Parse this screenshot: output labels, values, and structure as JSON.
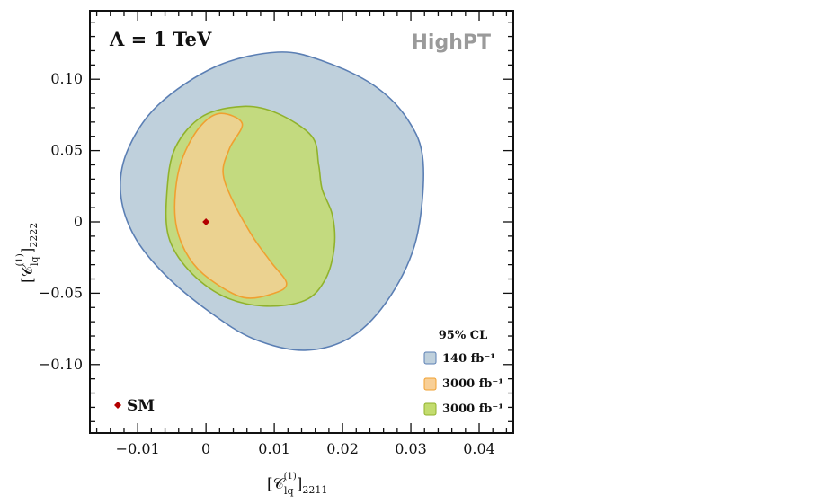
{
  "chart_data": {
    "type": "contour",
    "title": "Λ = 1 TeV",
    "brand": "HighPT",
    "xlabel": {
      "base": "[𝒞",
      "sup": "(1)",
      "sub": "lq",
      "tail": "]",
      "tail_sub": "2211"
    },
    "ylabel": {
      "base": "[𝒞",
      "sup": "(1)",
      "sub": "lq",
      "tail": "]",
      "tail_sub": "2222"
    },
    "xlim": [
      -0.017,
      0.045
    ],
    "ylim": [
      -0.148,
      0.148
    ],
    "x_ticks": [
      -0.01,
      0,
      0.01,
      0.02,
      0.03,
      0.04
    ],
    "x_tick_labels": [
      "−0.01",
      "0",
      "0.01",
      "0.02",
      "0.03",
      "0.04"
    ],
    "y_ticks": [
      -0.1,
      -0.05,
      0,
      0.05,
      0.1
    ],
    "y_tick_labels": [
      "−0.10",
      "−0.05",
      "0",
      "0.05",
      "0.10"
    ],
    "grid": false,
    "legend_title": "95% CL",
    "legend_position": "bottom-right",
    "series": [
      {
        "name": "140 fb⁻¹",
        "fill": "#bfd0dc",
        "stroke": "#5b7fb4",
        "contour": [
          [
            0.0105,
            0.119
          ],
          [
            0.017,
            0.113
          ],
          [
            0.0245,
            0.096
          ],
          [
            0.0295,
            0.072
          ],
          [
            0.0318,
            0.042
          ],
          [
            0.0308,
            -0.012
          ],
          [
            0.027,
            -0.052
          ],
          [
            0.0215,
            -0.08
          ],
          [
            0.0145,
            -0.09
          ],
          [
            0.007,
            -0.082
          ],
          [
            0.0005,
            -0.063
          ],
          [
            -0.006,
            -0.037
          ],
          [
            -0.0105,
            -0.01
          ],
          [
            -0.0125,
            0.02
          ],
          [
            -0.0115,
            0.05
          ],
          [
            -0.007,
            0.082
          ],
          [
            0.0015,
            0.109
          ],
          [
            0.0105,
            0.119
          ]
        ]
      },
      {
        "name": "3000 fb⁻¹",
        "fill": "#f8cf96",
        "stroke": "#f0a030",
        "contour": [
          [
            0.002,
            0.076
          ],
          [
            0.0053,
            0.069
          ],
          [
            0.0035,
            0.052
          ],
          [
            0.0025,
            0.035
          ],
          [
            0.0038,
            0.016
          ],
          [
            0.0068,
            -0.01
          ],
          [
            0.0095,
            -0.028
          ],
          [
            0.0118,
            -0.043
          ],
          [
            0.01,
            -0.05
          ],
          [
            0.0055,
            -0.053
          ],
          [
            0.0005,
            -0.04
          ],
          [
            -0.0025,
            -0.025
          ],
          [
            -0.0043,
            -0.004
          ],
          [
            -0.0045,
            0.02
          ],
          [
            -0.0035,
            0.044
          ],
          [
            -0.001,
            0.066
          ],
          [
            0.002,
            0.076
          ]
        ]
      },
      {
        "name": "3000 fb⁻¹",
        "fill": "#c3dc6e",
        "stroke": "#90b22c",
        "contour": [
          [
            0.0055,
            0.081
          ],
          [
            0.0105,
            0.076
          ],
          [
            0.0155,
            0.06
          ],
          [
            0.0165,
            0.04
          ],
          [
            0.017,
            0.023
          ],
          [
            0.0185,
            0.005
          ],
          [
            0.0188,
            -0.017
          ],
          [
            0.0175,
            -0.04
          ],
          [
            0.0145,
            -0.055
          ],
          [
            0.0085,
            -0.059
          ],
          [
            0.0025,
            -0.052
          ],
          [
            -0.0025,
            -0.034
          ],
          [
            -0.0055,
            -0.01
          ],
          [
            -0.0057,
            0.022
          ],
          [
            -0.0045,
            0.052
          ],
          [
            -0.0005,
            0.074
          ],
          [
            0.0055,
            0.081
          ]
        ]
      }
    ],
    "markers": [
      {
        "name": "SM",
        "x": 0,
        "y": 0,
        "color": "#b30000"
      }
    ],
    "marker_legend": "SM"
  }
}
